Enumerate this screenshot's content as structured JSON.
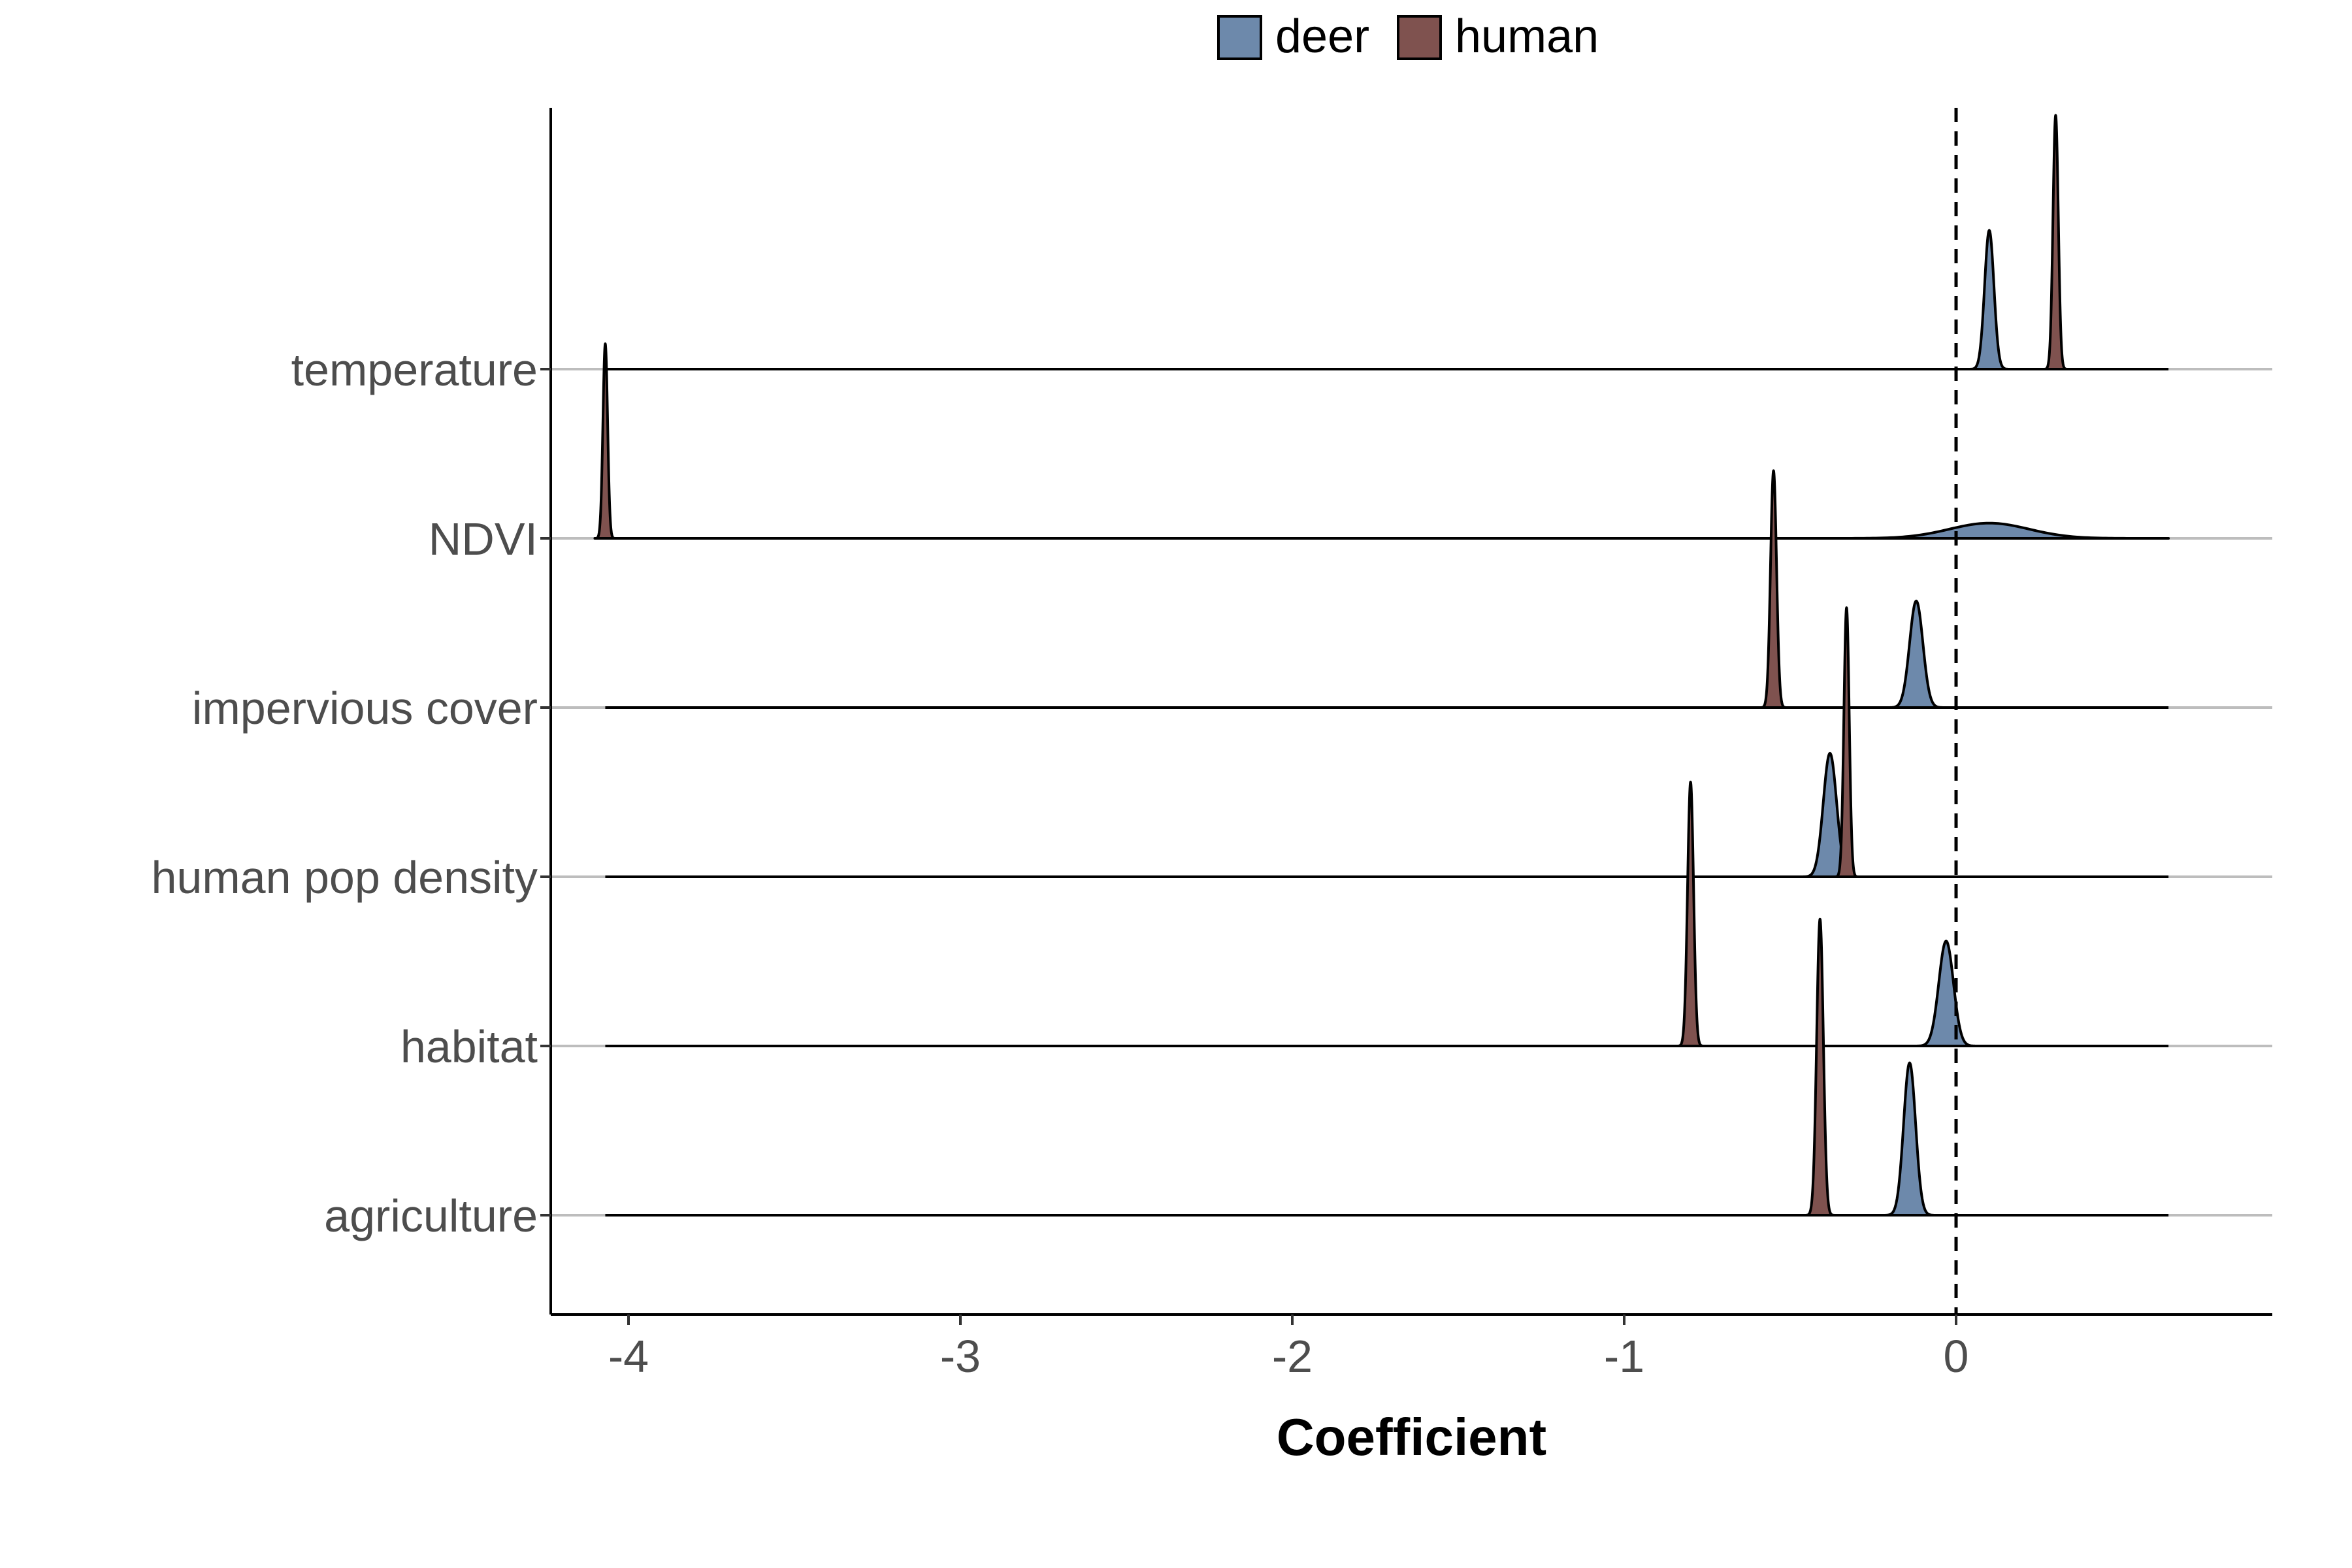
{
  "chart_data": {
    "type": "ridgeline",
    "xlabel": "Coefficient",
    "ylabel": "",
    "xlim": [
      -4.3,
      0.87
    ],
    "x_ticks": [
      -4,
      -3,
      -2,
      -1,
      0
    ],
    "x_tick_labels": [
      "-4",
      "-3",
      "-2",
      "-1",
      "0"
    ],
    "reference_line": {
      "x": 0,
      "style": "dashed"
    },
    "grid": "horizontal baselines only",
    "legend_position": "top",
    "categories": [
      "agriculture",
      "habitat",
      "human pop density",
      "impervious cover",
      "NDVI",
      "temperature"
    ],
    "series": [
      {
        "name": "deer",
        "color": "#6d89ab",
        "distributions": [
          {
            "category": "agriculture",
            "peak": -0.14,
            "sd": 0.018,
            "rel_height": 0.9
          },
          {
            "category": "habitat",
            "peak": -0.03,
            "sd": 0.022,
            "rel_height": 0.62
          },
          {
            "category": "human pop density",
            "peak": -0.38,
            "sd": 0.02,
            "rel_height": 0.73
          },
          {
            "category": "impervious cover",
            "peak": -0.12,
            "sd": 0.02,
            "rel_height": 0.63
          },
          {
            "category": "NDVI",
            "peak": 0.1,
            "sd": 0.12,
            "rel_height": 0.09
          },
          {
            "category": "temperature",
            "peak": 0.1,
            "sd": 0.014,
            "rel_height": 0.82
          }
        ]
      },
      {
        "name": "human",
        "color": "#7f524f",
        "distributions": [
          {
            "category": "agriculture",
            "peak": -0.41,
            "sd": 0.01,
            "rel_height": 1.75
          },
          {
            "category": "habitat",
            "peak": -0.8,
            "sd": 0.009,
            "rel_height": 1.56
          },
          {
            "category": "human pop density",
            "peak": -0.33,
            "sd": 0.008,
            "rel_height": 1.59
          },
          {
            "category": "impervious cover",
            "peak": -0.55,
            "sd": 0.009,
            "rel_height": 1.4
          },
          {
            "category": "NDVI",
            "peak": -4.07,
            "sd": 0.007,
            "rel_height": 1.15
          },
          {
            "category": "temperature",
            "peak": 0.3,
            "sd": 0.008,
            "rel_height": 1.5
          }
        ]
      }
    ]
  }
}
